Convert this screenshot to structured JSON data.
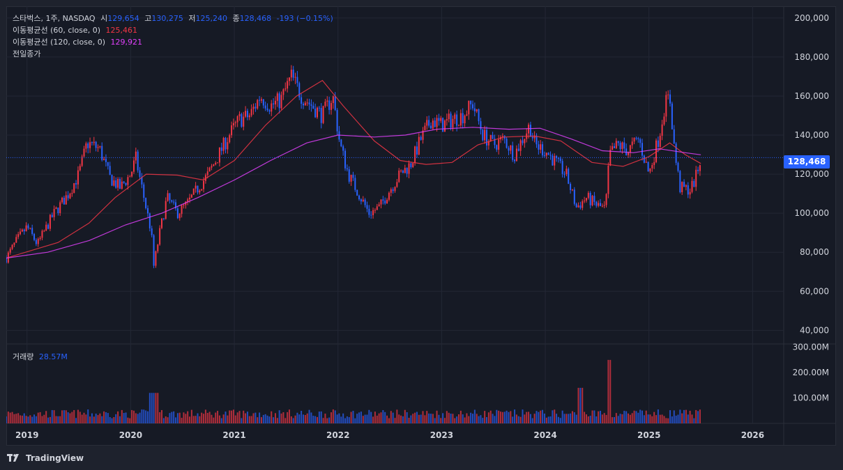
{
  "header": {
    "symbol": "스타벅스, 1주, NASDAQ",
    "open_label": "시",
    "open": "129,654",
    "high_label": "고",
    "high": "130,275",
    "low_label": "저",
    "low": "125,240",
    "close_label": "종",
    "close": "128,468",
    "change": "-193 (−0.15%)"
  },
  "indicators": {
    "ma60_label": "이동평균선 (60, close, 0)",
    "ma60_value": "125,461",
    "ma120_label": "이동평균선 (120, close, 0)",
    "ma120_value": "129,921",
    "prev_close_label": "전일종가"
  },
  "volume": {
    "label": "거래량",
    "value": "28.57M"
  },
  "price_tag": "128,468",
  "footer": {
    "brand": "TradingView"
  },
  "colors": {
    "up": "#f23645",
    "down": "#2962ff",
    "ma60": "#f23645",
    "ma120": "#e040fb",
    "background": "#161a25",
    "grid": "#2a2e39",
    "text": "#d1d4dc"
  },
  "chart_data": {
    "type": "candlestick",
    "interval": "1 week",
    "y_ticks": [
      40000,
      60000,
      80000,
      100000,
      120000,
      140000,
      160000,
      180000,
      200000
    ],
    "y_tick_labels": [
      "40,000",
      "60,000",
      "80,000",
      "100,000",
      "120,000",
      "140,000",
      "160,000",
      "180,000",
      "200,000"
    ],
    "ylim": [
      33000,
      206000
    ],
    "x_ticks": [
      2019,
      2020,
      2021,
      2022,
      2023,
      2024,
      2025,
      2026
    ],
    "xlim": [
      2018.8,
      2026.3
    ],
    "volume_ticks": [
      100,
      200,
      300
    ],
    "volume_tick_labels": [
      "100.00M",
      "200.00M",
      "300.00M"
    ],
    "volume_lim": [
      0,
      310
    ],
    "last_close": 128468,
    "close_path": [
      [
        2018.8,
        77000
      ],
      [
        2018.9,
        86000
      ],
      [
        2019.0,
        93000
      ],
      [
        2019.1,
        84000
      ],
      [
        2019.25,
        99000
      ],
      [
        2019.4,
        110000
      ],
      [
        2019.5,
        120000
      ],
      [
        2019.58,
        136000
      ],
      [
        2019.7,
        133000
      ],
      [
        2019.8,
        118000
      ],
      [
        2019.9,
        113000
      ],
      [
        2020.0,
        120000
      ],
      [
        2020.05,
        128000
      ],
      [
        2020.12,
        110000
      ],
      [
        2020.2,
        90000
      ],
      [
        2020.22,
        72000
      ],
      [
        2020.28,
        90000
      ],
      [
        2020.35,
        108000
      ],
      [
        2020.45,
        100000
      ],
      [
        2020.55,
        105000
      ],
      [
        2020.65,
        113000
      ],
      [
        2020.75,
        120000
      ],
      [
        2020.85,
        130000
      ],
      [
        2020.95,
        140000
      ],
      [
        2021.05,
        148000
      ],
      [
        2021.15,
        150000
      ],
      [
        2021.25,
        160000
      ],
      [
        2021.35,
        155000
      ],
      [
        2021.45,
        158000
      ],
      [
        2021.55,
        170000
      ],
      [
        2021.65,
        160000
      ],
      [
        2021.75,
        155000
      ],
      [
        2021.85,
        150000
      ],
      [
        2021.95,
        160000
      ],
      [
        2022.02,
        135000
      ],
      [
        2022.1,
        120000
      ],
      [
        2022.2,
        110000
      ],
      [
        2022.3,
        100000
      ],
      [
        2022.4,
        103000
      ],
      [
        2022.5,
        112000
      ],
      [
        2022.6,
        120000
      ],
      [
        2022.7,
        125000
      ],
      [
        2022.8,
        138000
      ],
      [
        2022.9,
        148000
      ],
      [
        2023.0,
        145000
      ],
      [
        2023.1,
        148000
      ],
      [
        2023.2,
        150000
      ],
      [
        2023.3,
        156000
      ],
      [
        2023.4,
        140000
      ],
      [
        2023.5,
        135000
      ],
      [
        2023.6,
        138000
      ],
      [
        2023.7,
        130000
      ],
      [
        2023.8,
        140000
      ],
      [
        2023.85,
        145000
      ],
      [
        2023.9,
        135000
      ],
      [
        2024.0,
        132000
      ],
      [
        2024.1,
        126000
      ],
      [
        2024.2,
        120000
      ],
      [
        2024.3,
        103000
      ],
      [
        2024.4,
        108000
      ],
      [
        2024.5,
        104000
      ],
      [
        2024.58,
        102000
      ],
      [
        2024.62,
        130000
      ],
      [
        2024.7,
        135000
      ],
      [
        2024.8,
        132000
      ],
      [
        2024.9,
        138000
      ],
      [
        2025.0,
        120000
      ],
      [
        2025.1,
        140000
      ],
      [
        2025.15,
        155000
      ],
      [
        2025.2,
        160000
      ],
      [
        2025.25,
        130000
      ],
      [
        2025.3,
        113000
      ],
      [
        2025.4,
        112000
      ],
      [
        2025.45,
        118000
      ],
      [
        2025.5,
        128468
      ]
    ],
    "series": [
      {
        "name": "이동평균선 (60, close, 0)",
        "color": "#f23645",
        "points": [
          [
            2018.8,
            77000
          ],
          [
            2019.3,
            85000
          ],
          [
            2019.6,
            95000
          ],
          [
            2019.85,
            108000
          ],
          [
            2020.15,
            120000
          ],
          [
            2020.45,
            119500
          ],
          [
            2020.7,
            117000
          ],
          [
            2021.0,
            127000
          ],
          [
            2021.3,
            145000
          ],
          [
            2021.6,
            160000
          ],
          [
            2021.85,
            168000
          ],
          [
            2022.05,
            155000
          ],
          [
            2022.35,
            137000
          ],
          [
            2022.6,
            127000
          ],
          [
            2022.85,
            125000
          ],
          [
            2023.1,
            126000
          ],
          [
            2023.35,
            135000
          ],
          [
            2023.6,
            139000
          ],
          [
            2023.9,
            139500
          ],
          [
            2024.15,
            137000
          ],
          [
            2024.45,
            126000
          ],
          [
            2024.75,
            124000
          ],
          [
            2025.0,
            129000
          ],
          [
            2025.2,
            136000
          ],
          [
            2025.35,
            130000
          ],
          [
            2025.5,
            125461
          ]
        ]
      },
      {
        "name": "이동평균선 (120, close, 0)",
        "color": "#e040fb",
        "points": [
          [
            2018.8,
            77000
          ],
          [
            2019.2,
            80000
          ],
          [
            2019.6,
            86000
          ],
          [
            2019.95,
            94000
          ],
          [
            2020.3,
            100000
          ],
          [
            2020.65,
            108000
          ],
          [
            2021.0,
            117000
          ],
          [
            2021.35,
            127000
          ],
          [
            2021.7,
            136000
          ],
          [
            2022.0,
            140000
          ],
          [
            2022.35,
            139000
          ],
          [
            2022.65,
            140000
          ],
          [
            2022.95,
            143000
          ],
          [
            2023.3,
            144000
          ],
          [
            2023.65,
            143000
          ],
          [
            2023.95,
            143500
          ],
          [
            2024.25,
            138000
          ],
          [
            2024.55,
            132000
          ],
          [
            2024.85,
            131000
          ],
          [
            2025.1,
            133000
          ],
          [
            2025.35,
            131000
          ],
          [
            2025.5,
            129921
          ]
        ]
      }
    ]
  }
}
